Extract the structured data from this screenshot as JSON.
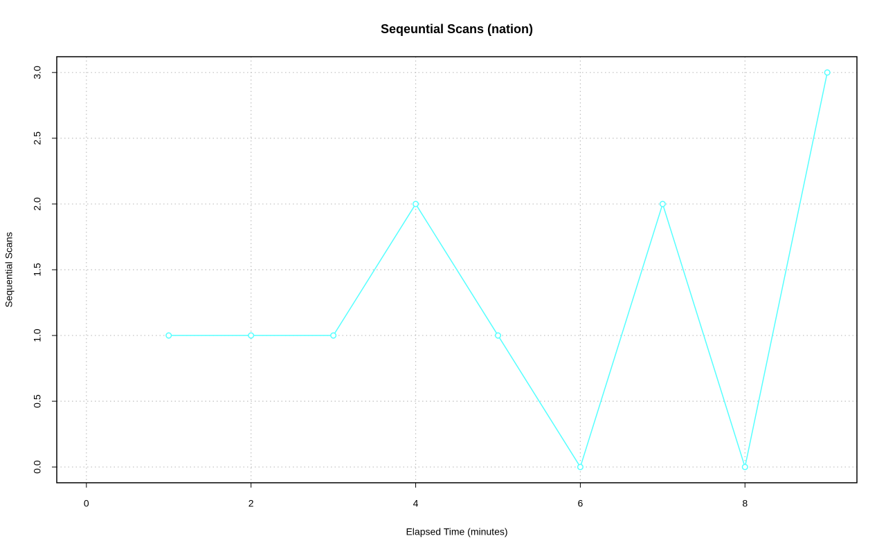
{
  "chart_data": {
    "type": "line",
    "title": "Seqeuntial Scans (nation)",
    "x_label": "Elapsed Time (minutes)",
    "y_label": "Sequential Scans",
    "x": [
      1,
      2,
      3,
      4,
      5,
      6,
      7,
      8,
      9
    ],
    "series": [
      {
        "color": "#55ffff",
        "values": [
          1,
          1,
          1,
          2,
          1,
          0,
          2,
          0,
          3
        ]
      }
    ],
    "xlim": [
      -0.36,
      9.36
    ],
    "xticks": [
      0,
      2,
      4,
      6,
      8
    ],
    "ylim": [
      -0.12,
      3.12
    ],
    "yticks": [
      {
        "value": 0,
        "label": "0.0"
      },
      0.5,
      {
        "value": 1,
        "label": "1.0"
      },
      1.5,
      {
        "value": 2,
        "label": "2.0"
      },
      2.5,
      {
        "value": 3,
        "label": "3.0"
      }
    ],
    "grid": true,
    "markers": true
  }
}
